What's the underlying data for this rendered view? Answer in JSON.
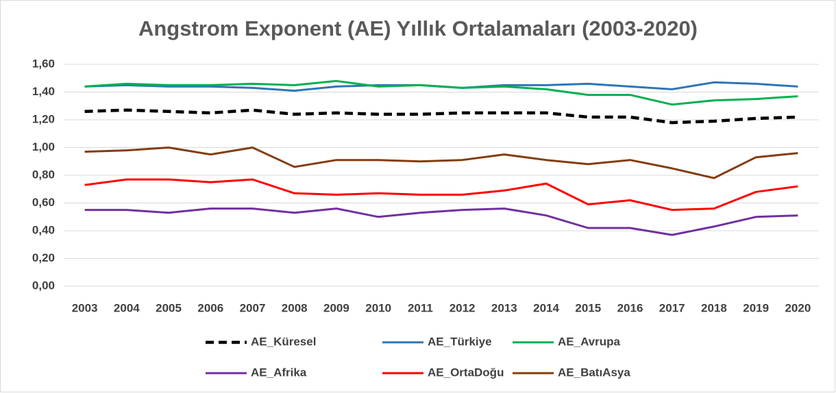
{
  "chart_data": {
    "type": "line",
    "title": "Angstrom Exponent (AE) Yıllık Ortalamaları (2003-2020)",
    "categories": [
      "2003",
      "2004",
      "2005",
      "2006",
      "2007",
      "2008",
      "2009",
      "2010",
      "2011",
      "2012",
      "2013",
      "2014",
      "2015",
      "2016",
      "2017",
      "2018",
      "2019",
      "2020"
    ],
    "series": [
      {
        "name": "AE_Küresel",
        "color": "#000000",
        "style": "dashed",
        "values": [
          1.26,
          1.27,
          1.26,
          1.25,
          1.27,
          1.24,
          1.25,
          1.24,
          1.24,
          1.25,
          1.25,
          1.25,
          1.22,
          1.22,
          1.18,
          1.19,
          1.21,
          1.22
        ]
      },
      {
        "name": "AE_Türkiye",
        "color": "#2e75b6",
        "style": "solid",
        "values": [
          1.44,
          1.45,
          1.44,
          1.44,
          1.43,
          1.41,
          1.44,
          1.45,
          1.45,
          1.43,
          1.45,
          1.45,
          1.46,
          1.44,
          1.42,
          1.47,
          1.46,
          1.44
        ]
      },
      {
        "name": "AE_Avrupa",
        "color": "#00b050",
        "style": "solid",
        "values": [
          1.44,
          1.46,
          1.45,
          1.45,
          1.46,
          1.45,
          1.48,
          1.44,
          1.45,
          1.43,
          1.44,
          1.42,
          1.38,
          1.38,
          1.31,
          1.34,
          1.35,
          1.37
        ]
      },
      {
        "name": "AE_Afrika",
        "color": "#7030a0",
        "style": "solid",
        "values": [
          0.55,
          0.55,
          0.53,
          0.56,
          0.56,
          0.53,
          0.56,
          0.5,
          0.53,
          0.55,
          0.56,
          0.51,
          0.42,
          0.42,
          0.37,
          0.43,
          0.5,
          0.51
        ]
      },
      {
        "name": "AE_OrtaDoğu",
        "color": "#ff0000",
        "style": "solid",
        "values": [
          0.73,
          0.77,
          0.77,
          0.75,
          0.77,
          0.67,
          0.66,
          0.67,
          0.66,
          0.66,
          0.69,
          0.74,
          0.59,
          0.62,
          0.55,
          0.56,
          0.68,
          0.72
        ]
      },
      {
        "name": "AE_BatıAsya",
        "color": "#843c0c",
        "style": "solid",
        "values": [
          0.97,
          0.98,
          1.0,
          0.95,
          1.0,
          0.86,
          0.91,
          0.91,
          0.9,
          0.91,
          0.95,
          0.91,
          0.88,
          0.91,
          0.85,
          0.78,
          0.93,
          0.96
        ]
      }
    ],
    "ylim": [
      0,
      1.6
    ],
    "yticks": [
      {
        "value": 0,
        "label": "0,00"
      },
      {
        "value": 0.2,
        "label": "0,20"
      },
      {
        "value": 0.4,
        "label": "0,40"
      },
      {
        "value": 0.6,
        "label": "0,60"
      },
      {
        "value": 0.8,
        "label": "0,80"
      },
      {
        "value": 1.0,
        "label": "1,00"
      },
      {
        "value": 1.2,
        "label": "1,20"
      },
      {
        "value": 1.4,
        "label": "1,40"
      },
      {
        "value": 1.6,
        "label": "1,60"
      }
    ],
    "grid": true,
    "legend": "bottom"
  }
}
